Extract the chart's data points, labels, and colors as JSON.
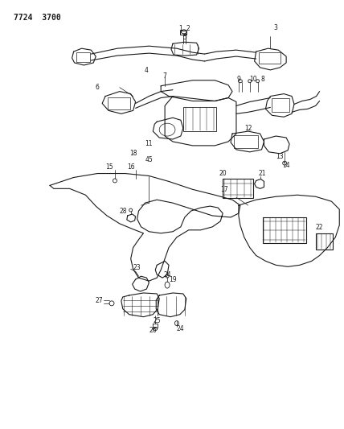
{
  "title_code": "7724  3700",
  "bg_color": "#ffffff",
  "line_color": "#1a1a1a",
  "fig_width": 4.28,
  "fig_height": 5.33,
  "dpi": 100
}
